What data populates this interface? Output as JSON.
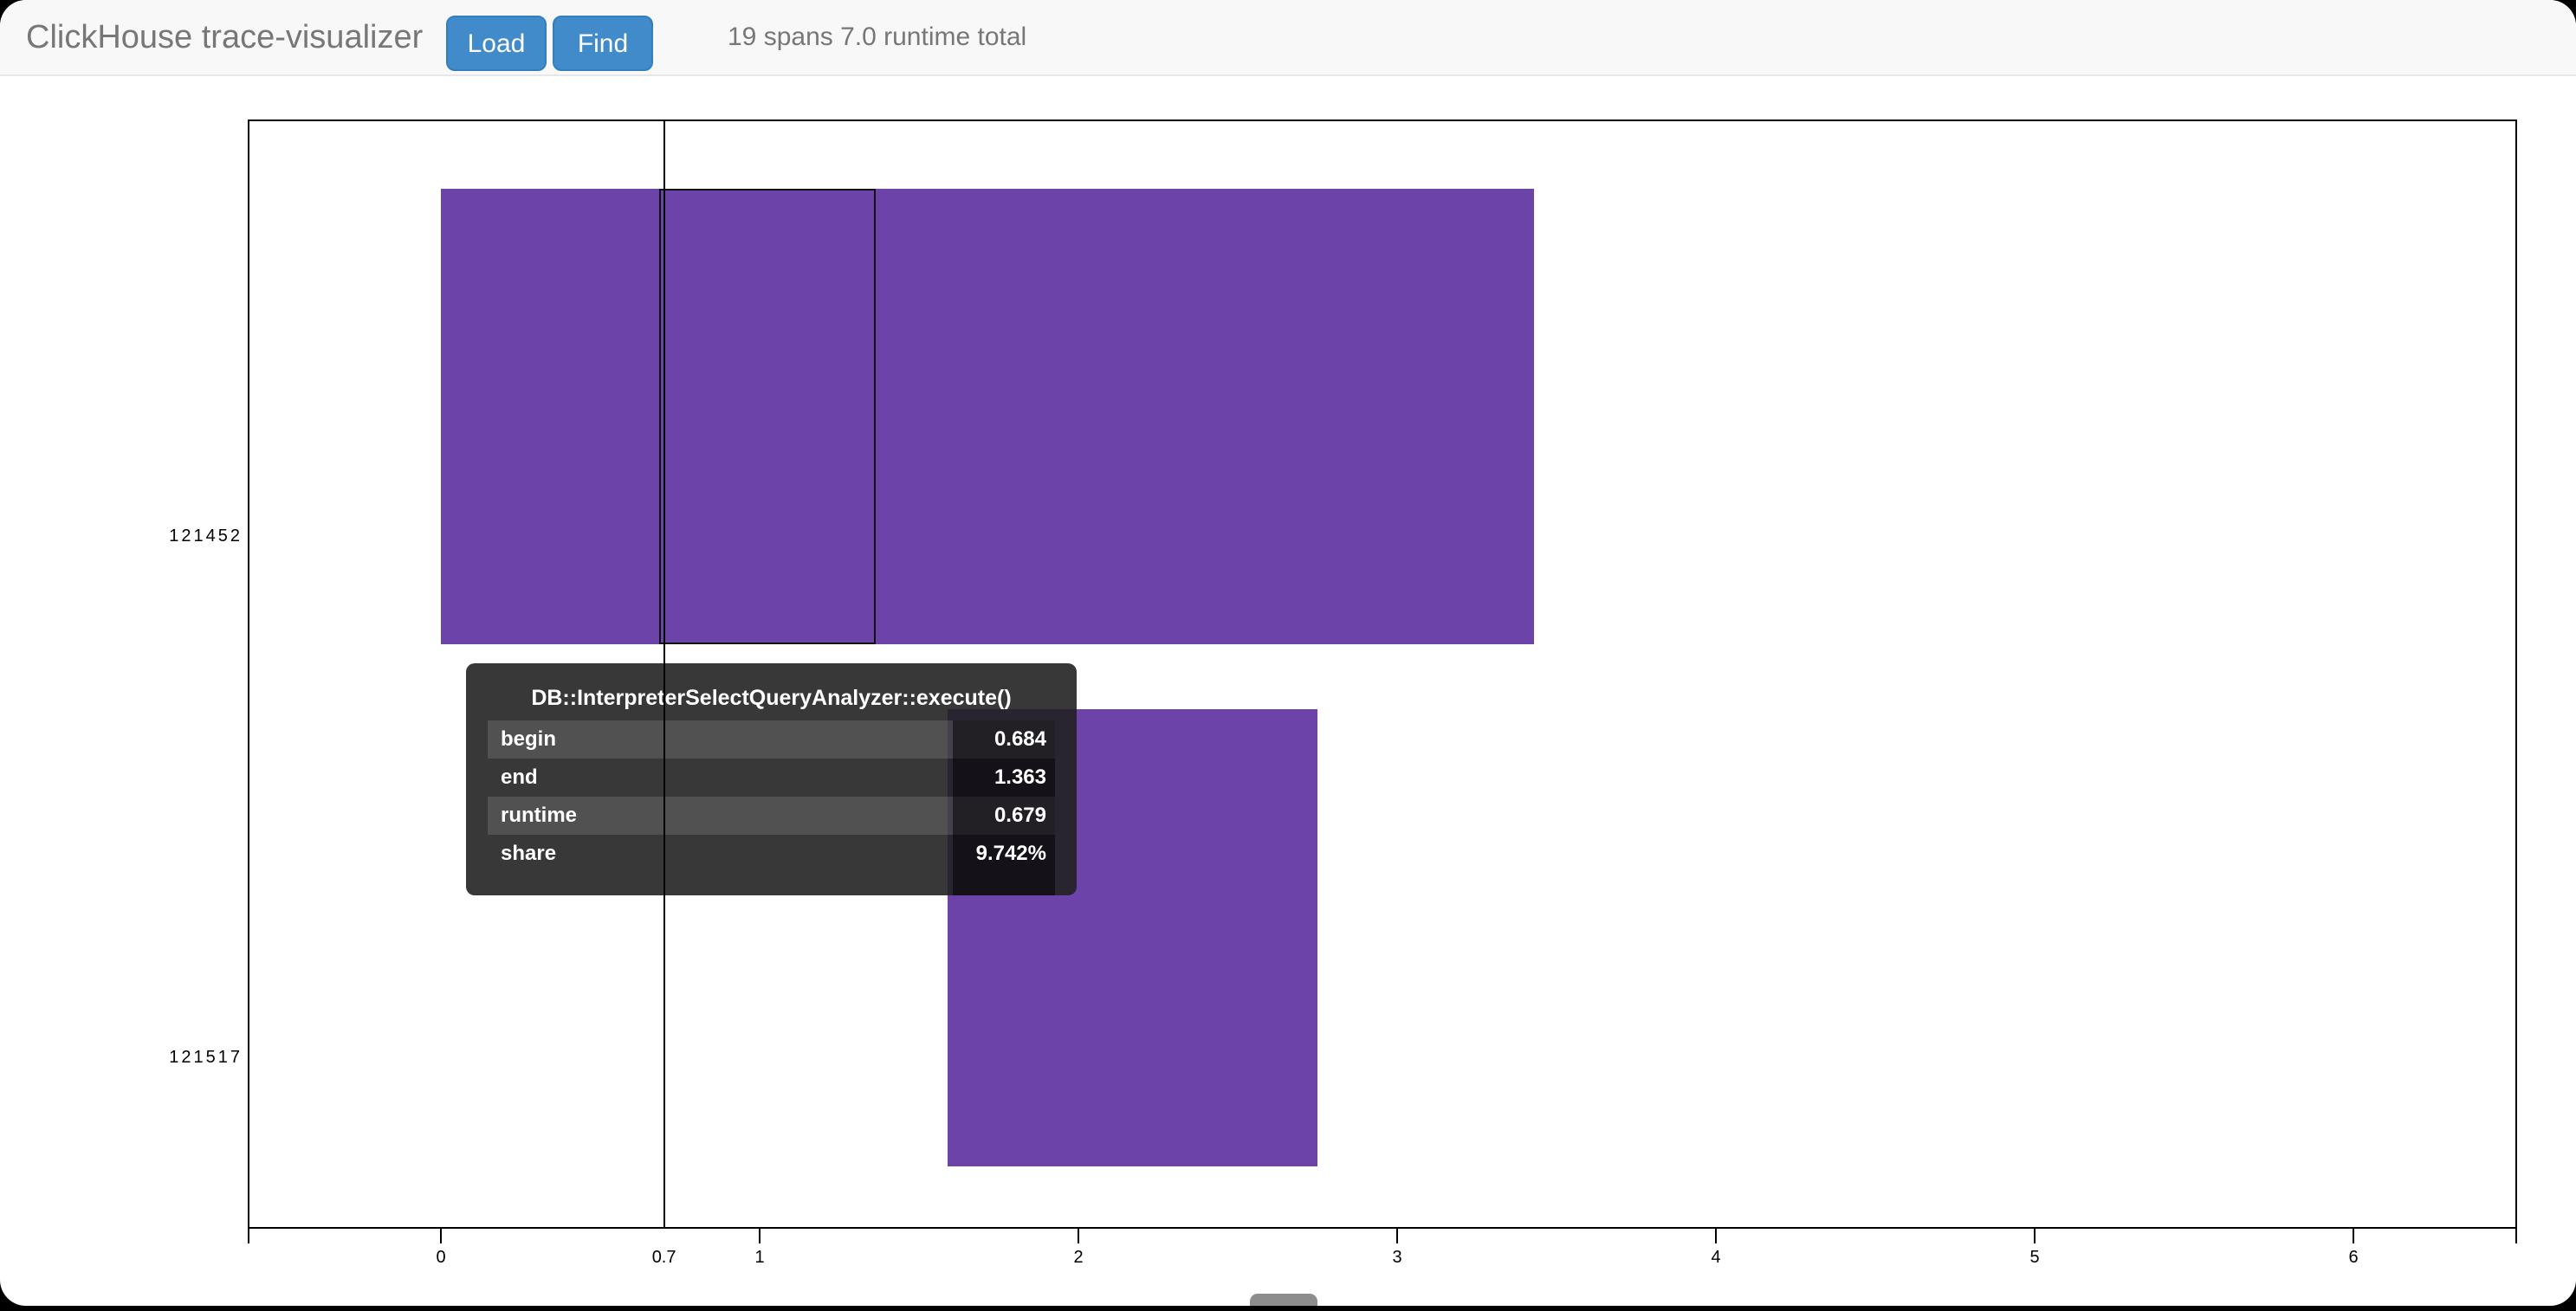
{
  "header": {
    "title": "ClickHouse trace-visualizer",
    "buttons": [
      {
        "label": "Load"
      },
      {
        "label": "Find"
      }
    ],
    "summary": "19 spans 7.0 runtime total",
    "colors": {
      "background": "#f8f8f8",
      "border": "#e7e7e7",
      "title_text": "#777777",
      "summary_text": "#777777",
      "button_bg": "#428bca",
      "button_border": "#357ebd",
      "button_text": "#ffffff"
    }
  },
  "chart_data": {
    "type": "bar",
    "variant": "horizontal-trace-span-timeline",
    "threads": [
      "121452",
      "121517"
    ],
    "x_ticks": [
      "0",
      "1",
      "2",
      "3",
      "4",
      "5",
      "6"
    ],
    "xlim": [
      -0.6,
      6.5
    ],
    "grid": false,
    "cursor": {
      "label": "0.7",
      "value": 0.7
    },
    "bar_color": "#6c43a8",
    "spans": [
      {
        "thread": "121452",
        "begin": 0.0,
        "end": 3.43
      },
      {
        "thread": "121517",
        "begin": 1.59,
        "end": 2.75
      }
    ],
    "hovered": {
      "thread": "121452",
      "begin": 0.684,
      "end": 1.363
    }
  },
  "tooltip": {
    "title": "DB::InterpreterSelectQueryAnalyzer::execute()",
    "rows": [
      {
        "label": "begin",
        "value": "0.684"
      },
      {
        "label": "end",
        "value": "1.363"
      },
      {
        "label": "runtime",
        "value": "0.679"
      },
      {
        "label": "share",
        "value": "9.742%"
      }
    ],
    "colors": {
      "background": "rgba(34,34,34,0.9)",
      "stripe": "rgba(255,255,255,0.13)",
      "value_column": "rgba(0,0,0,0.5)",
      "text": "#ffffff"
    }
  },
  "scrollbar": {
    "thumb_color": "#8d8d8d"
  }
}
